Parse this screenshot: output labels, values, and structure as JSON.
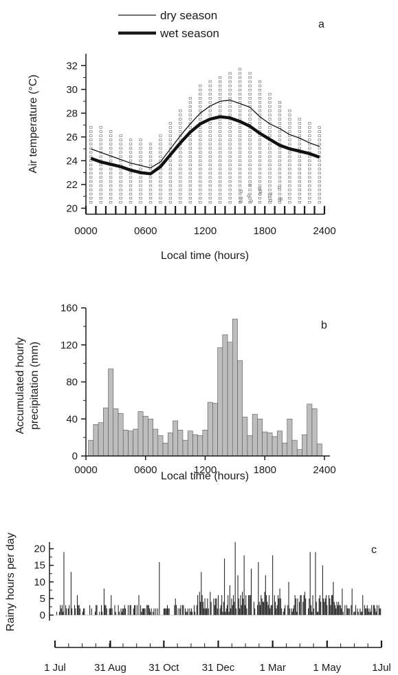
{
  "chart_data": [
    {
      "panel": "a",
      "type": "line",
      "legend": {
        "position": "top-left",
        "entries": [
          "dry season",
          "wet season"
        ]
      },
      "ylabel": "Air temperature (°C)",
      "xlabel": "Local time (hours)",
      "xlim": [
        0,
        24
      ],
      "ylim": [
        19.5,
        33
      ],
      "xticks": [
        "0000",
        "0600",
        "1200",
        "1800",
        "2400"
      ],
      "yticks": [
        20,
        22,
        24,
        26,
        28,
        30,
        32
      ],
      "x": [
        0.5,
        1.5,
        2.5,
        3.5,
        4.5,
        5.5,
        6.5,
        7.5,
        8.5,
        9.5,
        10.5,
        11.5,
        12.5,
        13.5,
        14.5,
        15.5,
        16.5,
        17.5,
        18.5,
        19.5,
        20.5,
        21.5,
        22.5,
        23.5
      ],
      "series": [
        {
          "name": "dry season",
          "style": "thin",
          "values": [
            25.0,
            24.7,
            24.4,
            24.1,
            23.8,
            23.6,
            23.4,
            23.9,
            25.0,
            26.1,
            27.1,
            28.0,
            28.6,
            29.0,
            29.1,
            28.8,
            28.5,
            27.7,
            27.1,
            26.7,
            26.2,
            25.9,
            25.5,
            25.2
          ]
        },
        {
          "name": "wet season",
          "style": "thick",
          "values": [
            24.2,
            23.9,
            23.7,
            23.5,
            23.2,
            23.0,
            22.9,
            23.5,
            24.5,
            25.5,
            26.4,
            27.1,
            27.5,
            27.7,
            27.6,
            27.3,
            26.9,
            26.3,
            25.8,
            25.3,
            25.0,
            24.8,
            24.6,
            24.3
          ]
        }
      ],
      "scatter_range": {
        "min": [
          20.5,
          20.5,
          20.5,
          20.5,
          20.5,
          20.5,
          20.5,
          20.5,
          20.5,
          20.5,
          20.5,
          20.5,
          20.5,
          20.5,
          20.5,
          20.5,
          20.5,
          20.5,
          20.5,
          20.5,
          20.5,
          20.5,
          20.5,
          20.5
        ],
        "max": [
          27.0,
          26.8,
          26.6,
          26.3,
          26.0,
          25.8,
          25.7,
          26.2,
          27.2,
          28.3,
          29.4,
          30.3,
          30.9,
          31.3,
          31.5,
          31.7,
          31.6,
          30.8,
          29.9,
          29.1,
          28.4,
          27.8,
          27.4,
          27.0
        ]
      }
    },
    {
      "panel": "b",
      "type": "bar",
      "ylabel": [
        "Accumulated hourly",
        "precipitation (mm)"
      ],
      "xlabel": "Local time (hours)",
      "xlim": [
        0,
        24
      ],
      "ylim": [
        0,
        160
      ],
      "xticks": [
        "0000",
        "0600",
        "1200",
        "1800",
        "2400"
      ],
      "yticks": [
        0,
        40,
        80,
        120,
        160
      ],
      "values": [
        17,
        34,
        36,
        52,
        94,
        51,
        46,
        28,
        27,
        29,
        48,
        43,
        40,
        29,
        22,
        14,
        25,
        38,
        28,
        17,
        27,
        23,
        22,
        28,
        58,
        57,
        117,
        131,
        123,
        148,
        103,
        42,
        22,
        45,
        40,
        26,
        25,
        21,
        27,
        14,
        40,
        17,
        7,
        23,
        56,
        51,
        13
      ]
    },
    {
      "panel": "c",
      "type": "bar",
      "ylabel": "Rainy hours per day",
      "ylim": [
        0,
        22
      ],
      "yticks": [
        0,
        5,
        10,
        15,
        20
      ],
      "xticks": [
        "1 Jul",
        "31 Aug",
        "31 Oct",
        "31 Dec",
        "1 Mar",
        "1 May",
        "1Jul"
      ],
      "n_days": 366,
      "peaks": [
        {
          "day": 10,
          "value": 19
        },
        {
          "day": 18,
          "value": 13
        },
        {
          "day": 25,
          "value": 6
        },
        {
          "day": 55,
          "value": 8
        },
        {
          "day": 63,
          "value": 6
        },
        {
          "day": 94,
          "value": 6
        },
        {
          "day": 117,
          "value": 16
        },
        {
          "day": 135,
          "value": 5
        },
        {
          "day": 164,
          "value": 13
        },
        {
          "day": 178,
          "value": 5
        },
        {
          "day": 190,
          "value": 17
        },
        {
          "day": 196,
          "value": 9
        },
        {
          "day": 202,
          "value": 22
        },
        {
          "day": 205,
          "value": 12
        },
        {
          "day": 212,
          "value": 18
        },
        {
          "day": 220,
          "value": 14
        },
        {
          "day": 228,
          "value": 16
        },
        {
          "day": 236,
          "value": 12
        },
        {
          "day": 244,
          "value": 18
        },
        {
          "day": 252,
          "value": 8
        },
        {
          "day": 262,
          "value": 10
        },
        {
          "day": 272,
          "value": 5
        },
        {
          "day": 286,
          "value": 19
        },
        {
          "day": 292,
          "value": 19
        },
        {
          "day": 300,
          "value": 15
        },
        {
          "day": 312,
          "value": 10
        },
        {
          "day": 322,
          "value": 8
        },
        {
          "day": 333,
          "value": 8
        },
        {
          "day": 345,
          "value": 6
        }
      ]
    }
  ]
}
